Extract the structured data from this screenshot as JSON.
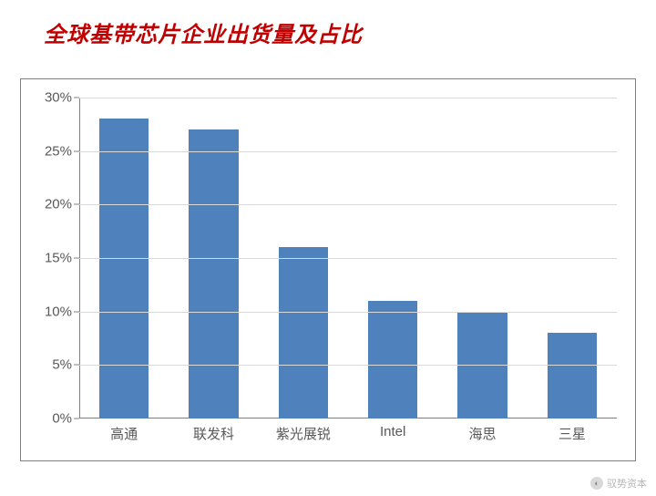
{
  "title": "全球基带芯片企业出货量及占比",
  "chart": {
    "type": "bar",
    "categories": [
      "高通",
      "联发科",
      "紫光展锐",
      "Intel",
      "海思",
      "三星"
    ],
    "values": [
      28,
      27,
      16,
      11,
      10,
      8
    ],
    "bar_color": "#4f81bd",
    "bar_width_ratio": 0.55,
    "ymin": 0,
    "ymax": 30,
    "ytick_step": 5,
    "ytick_suffix": "%",
    "grid_color": "#d9d9d9",
    "axis_color": "#808080",
    "frame_border_color": "#7f7f7f",
    "background_color": "#ffffff",
    "axis_label_color": "#595959",
    "axis_label_fontsize": 15,
    "title_color": "#c00000",
    "title_fontsize": 24
  },
  "watermark": {
    "text": "驭势资本",
    "prefix_icon": "◐"
  }
}
